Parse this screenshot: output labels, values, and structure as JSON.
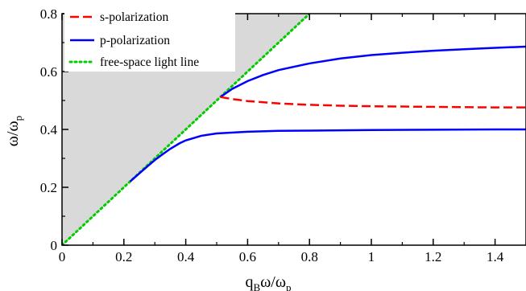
{
  "chart_data": {
    "type": "line",
    "xlabel": {
      "main": "q",
      "sub1": "B",
      "mid": "ω/ω",
      "sub2": "p"
    },
    "ylabel": {
      "main": "ω/ω",
      "sub": "p"
    },
    "xlim": [
      0,
      1.5
    ],
    "ylim": [
      0,
      0.8
    ],
    "xticks": [
      0,
      0.2,
      0.4,
      0.6,
      0.8,
      1.0,
      1.2,
      1.4
    ],
    "xtick_labels": [
      "0",
      "0.2",
      "0.4",
      "0.6",
      "0.8",
      "1",
      "1.2",
      "1.4"
    ],
    "yticks": [
      0,
      0.2,
      0.4,
      0.6,
      0.8
    ],
    "ytick_labels": [
      "0",
      "0.2",
      "0.4",
      "0.6",
      "0.8"
    ],
    "grid": false,
    "legend_position": "top-left",
    "shaded_region": {
      "description": "above free-space light line",
      "color": "#d9d9d9"
    },
    "series": [
      {
        "name": "s-polarization",
        "color": "#ff0000",
        "dash": "dashed",
        "x": [
          0.512,
          0.55,
          0.6,
          0.7,
          0.8,
          0.9,
          1.0,
          1.1,
          1.2,
          1.3,
          1.4,
          1.5
        ],
        "y": [
          0.512,
          0.505,
          0.498,
          0.49,
          0.485,
          0.482,
          0.48,
          0.479,
          0.478,
          0.477,
          0.476,
          0.476
        ]
      },
      {
        "name": "p-polarization",
        "color": "#0000ff",
        "dash": "solid",
        "x": [
          0.512,
          0.55,
          0.6,
          0.65,
          0.7,
          0.8,
          0.9,
          1.0,
          1.1,
          1.2,
          1.3,
          1.4,
          1.5
        ],
        "y": [
          0.512,
          0.54,
          0.567,
          0.588,
          0.605,
          0.628,
          0.645,
          0.657,
          0.665,
          0.672,
          0.677,
          0.682,
          0.686
        ]
      },
      {
        "name": "",
        "color": "#0000ff",
        "dash": "solid",
        "x": [
          0.22,
          0.25,
          0.28,
          0.3,
          0.32,
          0.35,
          0.38,
          0.4,
          0.45,
          0.5,
          0.6,
          0.7,
          0.8,
          0.9,
          1.0,
          1.2,
          1.4,
          1.5
        ],
        "y": [
          0.22,
          0.248,
          0.276,
          0.294,
          0.31,
          0.333,
          0.352,
          0.362,
          0.378,
          0.386,
          0.392,
          0.395,
          0.396,
          0.397,
          0.398,
          0.399,
          0.4,
          0.4
        ]
      },
      {
        "name": "free-space light line",
        "color": "#00cc00",
        "dash": "dotted",
        "x": [
          0,
          0.8
        ],
        "y": [
          0,
          0.8
        ]
      }
    ]
  }
}
